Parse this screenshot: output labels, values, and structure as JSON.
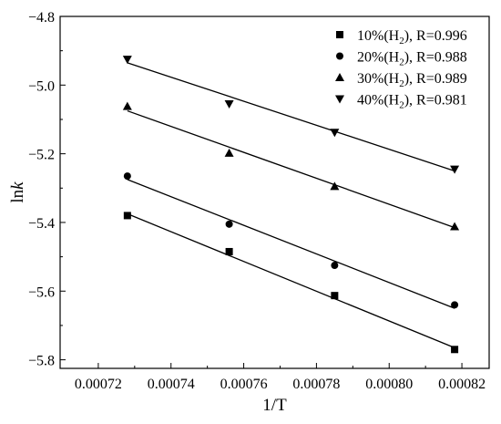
{
  "chart_data": {
    "type": "scatter",
    "xlabel": "1/T",
    "ylabel_main": "ln",
    "ylabel_italic": "k",
    "xlim": [
      0.0007095,
      0.0008275
    ],
    "ylim": [
      -5.825,
      -4.8
    ],
    "xticks": [
      0.00072,
      0.00074,
      0.00076,
      0.00078,
      0.0008,
      0.00082
    ],
    "xtick_labels": [
      "0.00072",
      "0.00074",
      "0.00076",
      "0.00078",
      "0.00080",
      "0.00082"
    ],
    "yticks": [
      -5.8,
      -5.6,
      -5.4,
      -5.2,
      -5.0,
      -4.8
    ],
    "ytick_labels": [
      "−5.8",
      "−5.6",
      "−5.4",
      "−5.2",
      "−5.0",
      "−4.8"
    ],
    "grid": false,
    "legend_position": "top-right",
    "series": [
      {
        "name": "10%(H2), R=0.996",
        "label_prefix": "10%(H",
        "label_sub": "2",
        "label_suffix": "), R=0.996",
        "marker": "square",
        "x": [
          0.000728,
          0.000756,
          0.000785,
          0.000818
        ],
        "y": [
          -5.38,
          -5.485,
          -5.613,
          -5.77
        ],
        "fit": [
          [
            0.000728,
            -5.375
          ],
          [
            0.000818,
            -5.765
          ]
        ]
      },
      {
        "name": "20%(H2), R=0.988",
        "label_prefix": "20%(H",
        "label_sub": "2",
        "label_suffix": "), R=0.988",
        "marker": "circle",
        "x": [
          0.000728,
          0.000756,
          0.000785,
          0.000818
        ],
        "y": [
          -5.265,
          -5.405,
          -5.525,
          -5.64
        ],
        "fit": [
          [
            0.000728,
            -5.275
          ],
          [
            0.000818,
            -5.65
          ]
        ]
      },
      {
        "name": "30%(H2), R=0.989",
        "label_prefix": "30%(H",
        "label_sub": "2",
        "label_suffix": "), R=0.989",
        "marker": "triangle-up",
        "x": [
          0.000728,
          0.000756,
          0.000785,
          0.000818
        ],
        "y": [
          -5.062,
          -5.198,
          -5.295,
          -5.412
        ],
        "fit": [
          [
            0.000728,
            -5.075
          ],
          [
            0.000818,
            -5.415
          ]
        ]
      },
      {
        "name": "40%(H2), R=0.981",
        "label_prefix": "40%(H",
        "label_sub": "2",
        "label_suffix": "), R=0.981",
        "marker": "triangle-down",
        "x": [
          0.000728,
          0.000756,
          0.000785,
          0.000818
        ],
        "y": [
          -4.925,
          -5.055,
          -5.138,
          -5.245
        ],
        "fit": [
          [
            0.000728,
            -4.935
          ],
          [
            0.000818,
            -5.25
          ]
        ]
      }
    ]
  }
}
